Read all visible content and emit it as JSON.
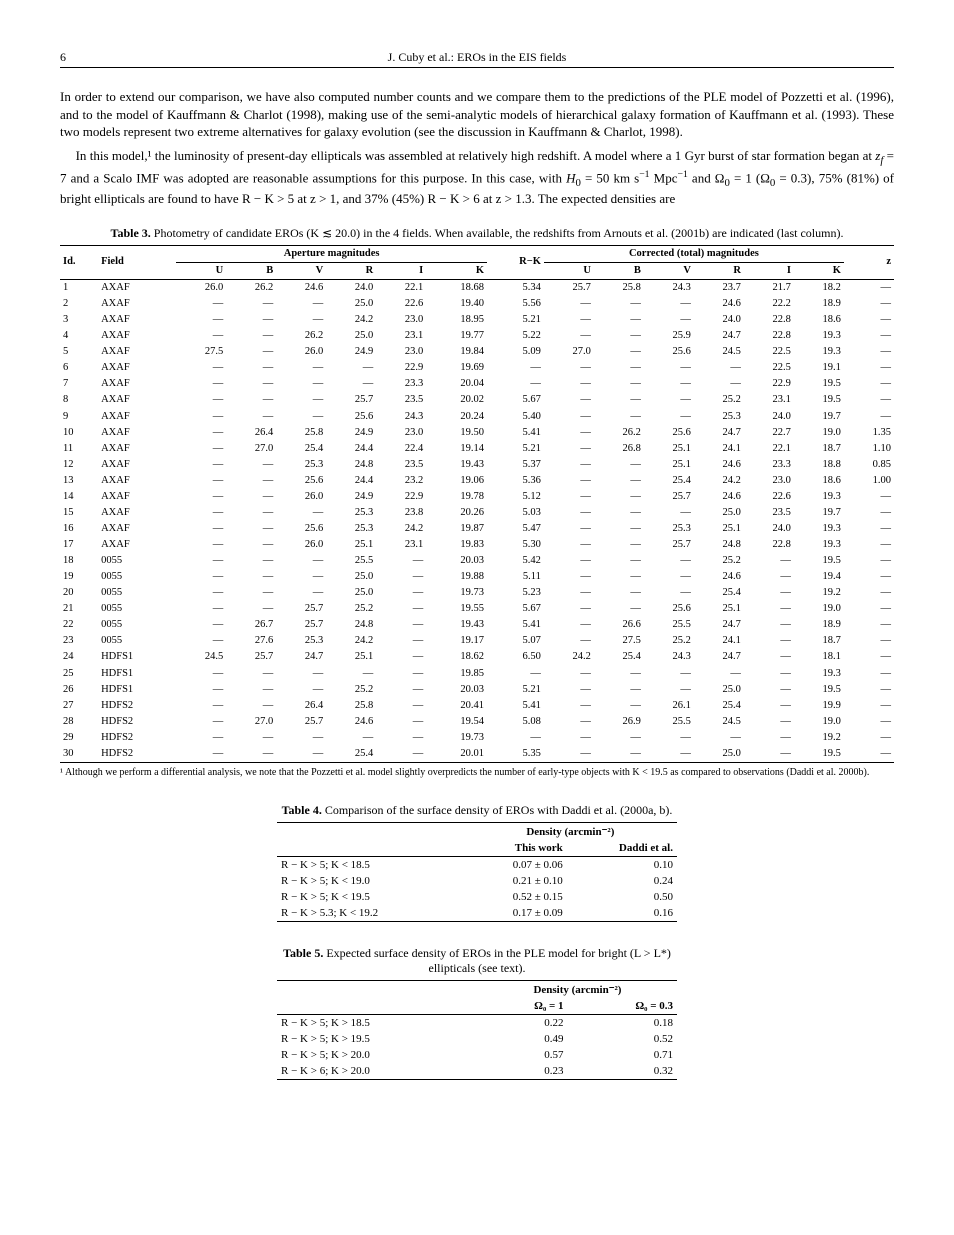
{
  "runhead": {
    "page": "6",
    "authors": "J. Cuby et al.: EROs in the EIS fields"
  },
  "intro": {
    "p1": "In order to extend our comparison, we have also computed number counts and we compare them to the predictions of the PLE model of Pozzetti et al. (1996), and to the model of Kauffmann & Charlot (1998), making use of the semi-analytic models of hierarchical galaxy formation of Kauffmann et al. (1993). These two models represent two extreme alternatives for galaxy evolution (see the discussion in Kauffmann & Charlot, 1998).",
    "p2_a": "In this model,¹ the luminosity of present-day ellipticals was assembled at relatively high redshift. A model where a 1 Gyr burst of star formation began at ",
    "p2_b": " and a Scalo IMF was adopted are reasonable assumptions for this purpose. In this case, with ",
    "p2_c": " and Ω",
    "p2_d": " = 1 (Ω",
    "p2_e": " = 0.3), 75% (81%) of bright ellipticals are found to have R − K > 5 at z > 1, and 37% (45%) R − K > 6 at z > 1.3. The expected densities are"
  },
  "table3": {
    "caption_num": "Table 3.",
    "caption_text": "Photometry of candidate EROs (K ≲ 20.0) in the 4 fields. When available, the redshifts from Arnouts et al. (2001b) are indicated (last column).",
    "headers": {
      "id": "Id.",
      "field": "Field",
      "aper": "Aperture magnitudes",
      "corr": "Corrected (total) magnitudes",
      "sub": [
        "U",
        "B",
        "V",
        "R",
        "I",
        "K",
        "R−K",
        "U",
        "B",
        "V",
        "R",
        "I",
        "K",
        "z"
      ]
    },
    "rows": [
      [
        "1",
        "AXAF",
        "26.0",
        "26.2",
        "24.6",
        "24.0",
        "22.1",
        "18.68",
        "5.34",
        "25.7",
        "25.8",
        "24.3",
        "23.7",
        "21.7",
        "18.2",
        "—"
      ],
      [
        "2",
        "AXAF",
        "—",
        "—",
        "—",
        "25.0",
        "22.6",
        "19.40",
        "5.56",
        "—",
        "—",
        "—",
        "24.6",
        "22.2",
        "18.9",
        "—"
      ],
      [
        "3",
        "AXAF",
        "—",
        "—",
        "—",
        "24.2",
        "23.0",
        "18.95",
        "5.21",
        "—",
        "—",
        "—",
        "24.0",
        "22.8",
        "18.6",
        "—"
      ],
      [
        "4",
        "AXAF",
        "—",
        "—",
        "26.2",
        "25.0",
        "23.1",
        "19.77",
        "5.22",
        "—",
        "—",
        "25.9",
        "24.7",
        "22.8",
        "19.3",
        "—"
      ],
      [
        "5",
        "AXAF",
        "27.5",
        "—",
        "26.0",
        "24.9",
        "23.0",
        "19.84",
        "5.09",
        "27.0",
        "—",
        "25.6",
        "24.5",
        "22.5",
        "19.3",
        "—"
      ],
      [
        "6",
        "AXAF",
        "—",
        "—",
        "—",
        "—",
        "22.9",
        "19.69",
        "—",
        "—",
        "—",
        "—",
        "—",
        "22.5",
        "19.1",
        "—"
      ],
      [
        "7",
        "AXAF",
        "—",
        "—",
        "—",
        "—",
        "23.3",
        "20.04",
        "—",
        "—",
        "—",
        "—",
        "—",
        "22.9",
        "19.5",
        "—"
      ],
      [
        "8",
        "AXAF",
        "—",
        "—",
        "—",
        "25.7",
        "23.5",
        "20.02",
        "5.67",
        "—",
        "—",
        "—",
        "25.2",
        "23.1",
        "19.5",
        "—"
      ],
      [
        "9",
        "AXAF",
        "—",
        "—",
        "—",
        "25.6",
        "24.3",
        "20.24",
        "5.40",
        "—",
        "—",
        "—",
        "25.3",
        "24.0",
        "19.7",
        "—"
      ],
      [
        "10",
        "AXAF",
        "—",
        "26.4",
        "25.8",
        "24.9",
        "23.0",
        "19.50",
        "5.41",
        "—",
        "26.2",
        "25.6",
        "24.7",
        "22.7",
        "19.0",
        "1.35"
      ],
      [
        "11",
        "AXAF",
        "—",
        "27.0",
        "25.4",
        "24.4",
        "22.4",
        "19.14",
        "5.21",
        "—",
        "26.8",
        "25.1",
        "24.1",
        "22.1",
        "18.7",
        "1.10"
      ],
      [
        "12",
        "AXAF",
        "—",
        "—",
        "25.3",
        "24.8",
        "23.5",
        "19.43",
        "5.37",
        "—",
        "—",
        "25.1",
        "24.6",
        "23.3",
        "18.8",
        "0.85"
      ],
      [
        "13",
        "AXAF",
        "—",
        "—",
        "25.6",
        "24.4",
        "23.2",
        "19.06",
        "5.36",
        "—",
        "—",
        "25.4",
        "24.2",
        "23.0",
        "18.6",
        "1.00"
      ],
      [
        "14",
        "AXAF",
        "—",
        "—",
        "26.0",
        "24.9",
        "22.9",
        "19.78",
        "5.12",
        "—",
        "—",
        "25.7",
        "24.6",
        "22.6",
        "19.3",
        "—"
      ],
      [
        "15",
        "AXAF",
        "—",
        "—",
        "—",
        "25.3",
        "23.8",
        "20.26",
        "5.03",
        "—",
        "—",
        "—",
        "25.0",
        "23.5",
        "19.7",
        "—"
      ],
      [
        "16",
        "AXAF",
        "—",
        "—",
        "25.6",
        "25.3",
        "24.2",
        "19.87",
        "5.47",
        "—",
        "—",
        "25.3",
        "25.1",
        "24.0",
        "19.3",
        "—"
      ],
      [
        "17",
        "AXAF",
        "—",
        "—",
        "26.0",
        "25.1",
        "23.1",
        "19.83",
        "5.30",
        "—",
        "—",
        "25.7",
        "24.8",
        "22.8",
        "19.3",
        "—"
      ],
      [
        "18",
        "0055",
        "—",
        "—",
        "—",
        "25.5",
        "—",
        "20.03",
        "5.42",
        "—",
        "—",
        "—",
        "25.2",
        "—",
        "19.5",
        "—"
      ],
      [
        "19",
        "0055",
        "—",
        "—",
        "—",
        "25.0",
        "—",
        "19.88",
        "5.11",
        "—",
        "—",
        "—",
        "24.6",
        "—",
        "19.4",
        "—"
      ],
      [
        "20",
        "0055",
        "—",
        "—",
        "—",
        "25.0",
        "—",
        "19.73",
        "5.23",
        "—",
        "—",
        "—",
        "25.4",
        "—",
        "19.2",
        "—"
      ],
      [
        "21",
        "0055",
        "—",
        "—",
        "25.7",
        "25.2",
        "—",
        "19.55",
        "5.67",
        "—",
        "—",
        "25.6",
        "25.1",
        "—",
        "19.0",
        "—"
      ],
      [
        "22",
        "0055",
        "—",
        "26.7",
        "25.7",
        "24.8",
        "—",
        "19.43",
        "5.41",
        "—",
        "26.6",
        "25.5",
        "24.7",
        "—",
        "18.9",
        "—"
      ],
      [
        "23",
        "0055",
        "—",
        "27.6",
        "25.3",
        "24.2",
        "—",
        "19.17",
        "5.07",
        "—",
        "27.5",
        "25.2",
        "24.1",
        "—",
        "18.7",
        "—"
      ],
      [
        "24",
        "HDFS1",
        "24.5",
        "25.7",
        "24.7",
        "25.1",
        "—",
        "18.62",
        "6.50",
        "24.2",
        "25.4",
        "24.3",
        "24.7",
        "—",
        "18.1",
        "—"
      ],
      [
        "25",
        "HDFS1",
        "—",
        "—",
        "—",
        "—",
        "—",
        "19.85",
        "—",
        "—",
        "—",
        "—",
        "—",
        "—",
        "19.3",
        "—"
      ],
      [
        "26",
        "HDFS1",
        "—",
        "—",
        "—",
        "25.2",
        "—",
        "20.03",
        "5.21",
        "—",
        "—",
        "—",
        "25.0",
        "—",
        "19.5",
        "—"
      ],
      [
        "27",
        "HDFS2",
        "—",
        "—",
        "26.4",
        "25.8",
        "—",
        "20.41",
        "5.41",
        "—",
        "—",
        "26.1",
        "25.4",
        "—",
        "19.9",
        "—"
      ],
      [
        "28",
        "HDFS2",
        "—",
        "27.0",
        "25.7",
        "24.6",
        "—",
        "19.54",
        "5.08",
        "—",
        "26.9",
        "25.5",
        "24.5",
        "—",
        "19.0",
        "—"
      ],
      [
        "29",
        "HDFS2",
        "—",
        "—",
        "—",
        "—",
        "—",
        "19.73",
        "—",
        "—",
        "—",
        "—",
        "—",
        "—",
        "19.2",
        "—"
      ],
      [
        "30",
        "HDFS2",
        "—",
        "—",
        "—",
        "25.4",
        "—",
        "20.01",
        "5.35",
        "—",
        "—",
        "—",
        "25.0",
        "—",
        "19.5",
        "—"
      ]
    ],
    "note": "¹ Although we perform a differential analysis, we note that the Pozzetti et al. model slightly overpredicts the number of early-type objects with K < 19.5 as compared to observations (Daddi et al. 2000b)."
  },
  "table4": {
    "caption_num": "Table 4.",
    "caption_text": "Comparison of the surface density of EROs with Daddi et al. (2000a, b).",
    "head_group": "Density (arcmin⁻²)",
    "head_sub": [
      "This work",
      "Daddi et al."
    ],
    "rows": [
      [
        "R − K > 5; K < 18.5",
        "0.07 ± 0.06",
        "0.10"
      ],
      [
        "R − K > 5; K < 19.0",
        "0.21 ± 0.10",
        "0.24"
      ],
      [
        "R − K > 5; K < 19.5",
        "0.52 ± 0.15",
        "0.50"
      ],
      [
        "R − K > 5.3; K < 19.2",
        "0.17 ± 0.09",
        "0.16"
      ]
    ]
  },
  "table5": {
    "caption_num": "Table 5.",
    "caption_text": "Expected surface density of EROs in the PLE model for bright (L > L*) ellipticals (see text).",
    "head_group": "Density (arcmin⁻²)",
    "head_cosmo": [
      "Ω₀ = 1",
      "Ω₀ = 0.3"
    ],
    "rows": [
      [
        "R − K > 5; K > 18.5",
        "0.22",
        "0.18"
      ],
      [
        "R − K > 5; K > 19.5",
        "0.49",
        "0.52"
      ],
      [
        "R − K > 5; K > 20.0",
        "0.57",
        "0.71"
      ],
      [
        "R − K > 6; K > 20.0",
        "0.23",
        "0.32"
      ]
    ]
  }
}
